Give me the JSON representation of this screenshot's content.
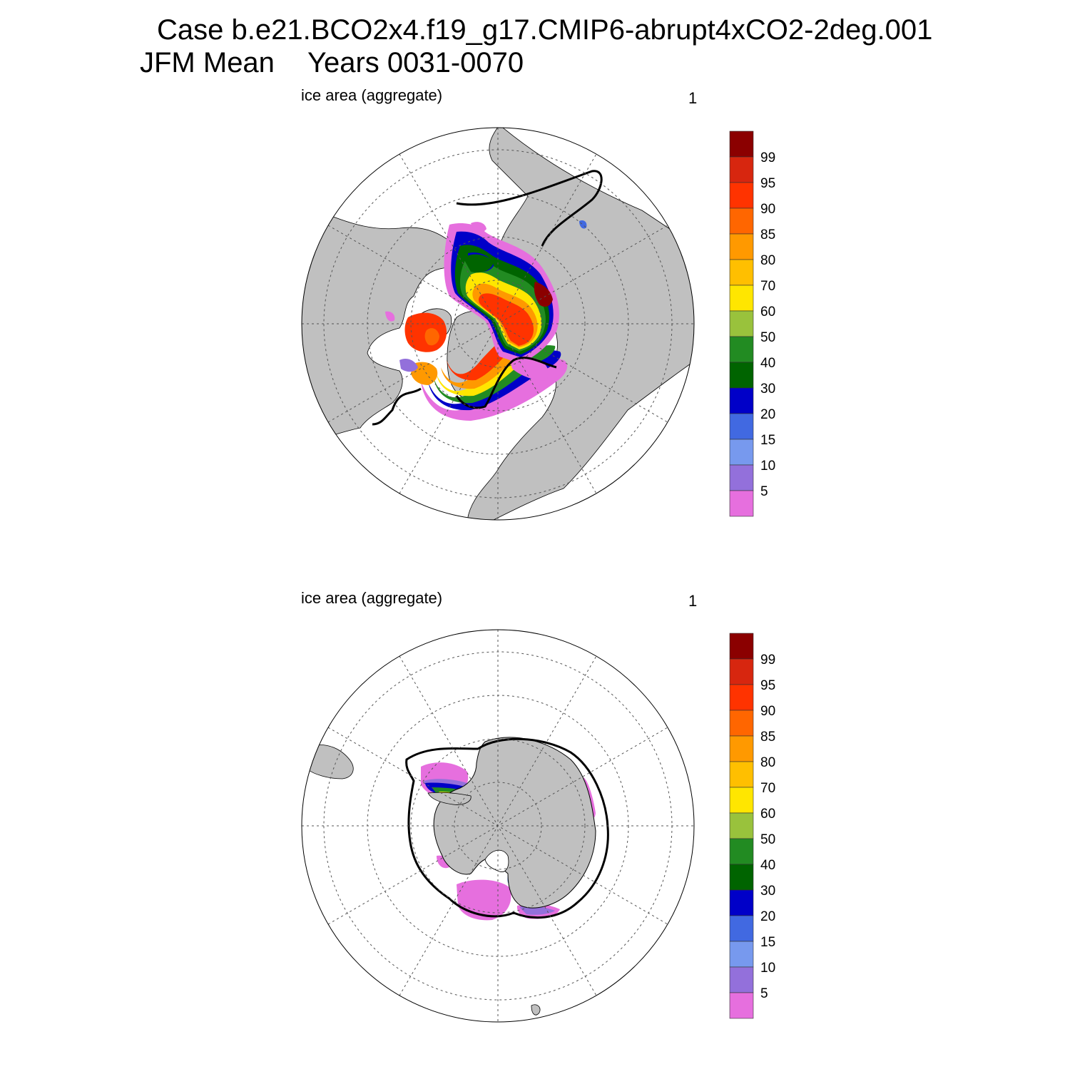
{
  "title": {
    "line1": "Case b.e21.BCO2x4.f19_g17.CMIP6-abrupt4xCO2-2deg.001",
    "season": "JFM Mean",
    "years": "Years 0031-0070"
  },
  "panels": [
    {
      "id": "north",
      "hemisphere": "Northern Hemisphere (Arctic)",
      "label": "ice area  (aggregate)",
      "number": "1"
    },
    {
      "id": "south",
      "hemisphere": "Southern Hemisphere (Antarctic)",
      "label": "ice area  (aggregate)",
      "number": "1"
    }
  ],
  "colorbar": {
    "labels": [
      "99",
      "95",
      "90",
      "85",
      "80",
      "70",
      "60",
      "50",
      "40",
      "30",
      "20",
      "15",
      "10",
      "5"
    ],
    "colors": [
      "#8b0000",
      "#d7260f",
      "#ff3300",
      "#ff6600",
      "#ff9900",
      "#ffbf00",
      "#ffe600",
      "#99c23c",
      "#228b22",
      "#006400",
      "#0000c8",
      "#4169e1",
      "#7799ee",
      "#9370db",
      "#e66fde"
    ]
  },
  "map_style": {
    "land": "#c0c0c0",
    "ocean": "#ffffff",
    "climatology_contour": "#000000"
  }
}
